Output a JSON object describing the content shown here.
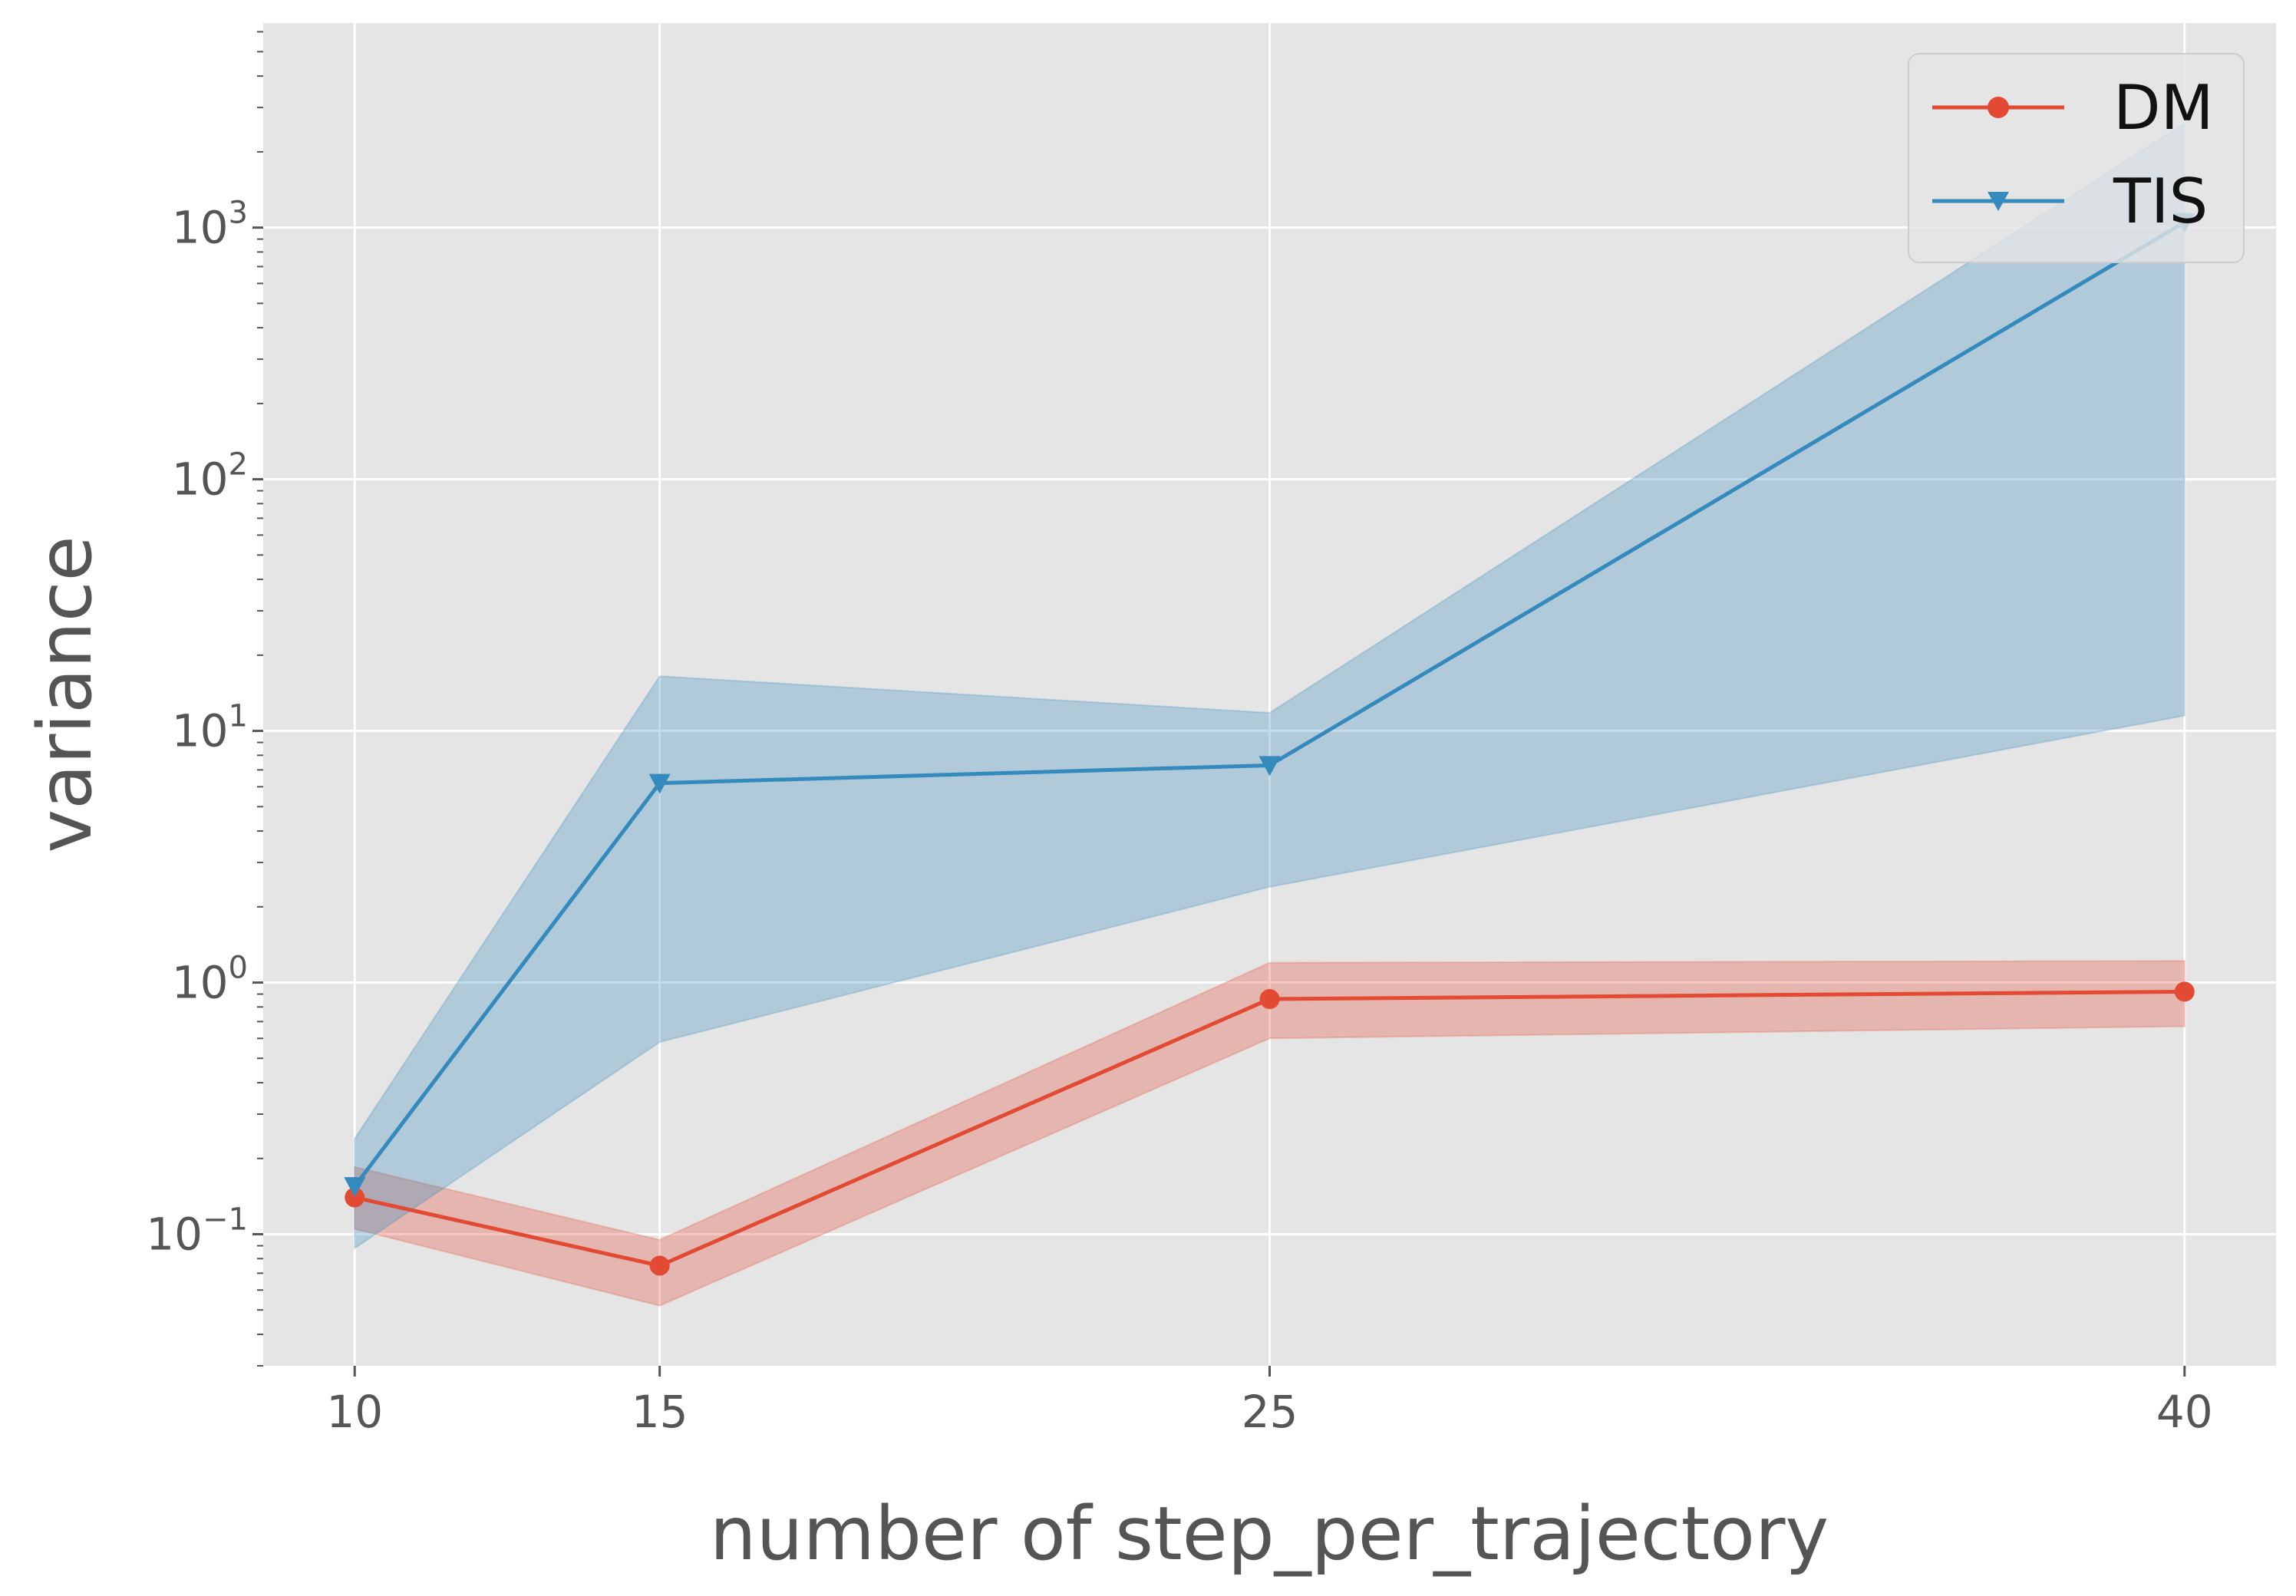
{
  "chart_data": {
    "type": "line",
    "title": "",
    "xlabel": "number of step_per_trajectory",
    "ylabel": "variance",
    "x": [
      10,
      15,
      25,
      40
    ],
    "x_ticks": [
      10,
      15,
      25,
      40
    ],
    "x_tick_labels": [
      "10",
      "15",
      "25",
      "40"
    ],
    "xlim": [
      8.5,
      41.5
    ],
    "yscale": "log",
    "ylim": [
      0.03,
      6500
    ],
    "y_ticks": [
      0.1,
      1,
      10,
      100,
      1000
    ],
    "y_tick_labels": [
      {
        "base": "10",
        "exp": "−1"
      },
      {
        "base": "10",
        "exp": "0"
      },
      {
        "base": "10",
        "exp": "1"
      },
      {
        "base": "10",
        "exp": "2"
      },
      {
        "base": "10",
        "exp": "3"
      }
    ],
    "grid": true,
    "legend_position": "top-right",
    "series": [
      {
        "name": "DM",
        "marker": "circle",
        "color": "#E24A33",
        "values": [
          0.14,
          0.075,
          0.86,
          0.92
        ],
        "lower": [
          0.105,
          0.052,
          0.6,
          0.67
        ],
        "upper": [
          0.185,
          0.095,
          1.2,
          1.22
        ]
      },
      {
        "name": "TIS",
        "marker": "triangle-down",
        "color": "#348ABD",
        "values": [
          0.155,
          6.2,
          7.3,
          1050
        ],
        "lower": [
          0.088,
          0.58,
          2.4,
          11.5
        ],
        "upper": [
          0.24,
          16.5,
          11.8,
          2600
        ]
      }
    ],
    "colors": {
      "plot_background": "#E5E5E5",
      "grid": "#FFFFFF",
      "tick_text": "#555555"
    }
  }
}
